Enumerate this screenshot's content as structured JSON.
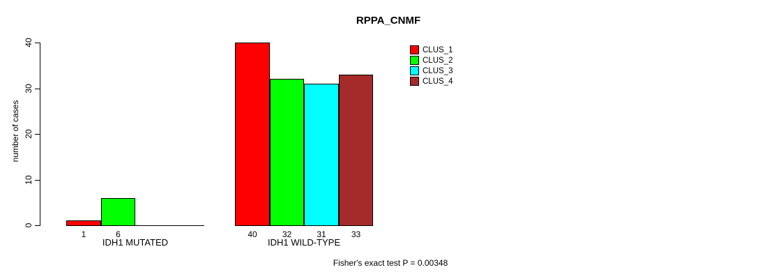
{
  "chart_data": {
    "type": "bar",
    "title": "RPPA_CNMF",
    "ylabel": "number of cases",
    "xlabel": "",
    "ylim": [
      0,
      40
    ],
    "yticks": [
      0,
      10,
      20,
      30,
      40
    ],
    "grid": false,
    "legend_position": "top-right",
    "series": [
      {
        "name": "CLUS_1",
        "color": "#FF0000"
      },
      {
        "name": "CLUS_2",
        "color": "#00FF00"
      },
      {
        "name": "CLUS_3",
        "color": "#00FFFF"
      },
      {
        "name": "CLUS_4",
        "color": "#A52A2A"
      }
    ],
    "groups": [
      {
        "label": "IDH1 MUTATED",
        "values": [
          1,
          6,
          0,
          0
        ]
      },
      {
        "label": "IDH1 WILD-TYPE",
        "values": [
          40,
          32,
          31,
          33
        ]
      }
    ],
    "value_labels_shown": true,
    "annotation": "Fisher's exact test P = 0.00348"
  }
}
